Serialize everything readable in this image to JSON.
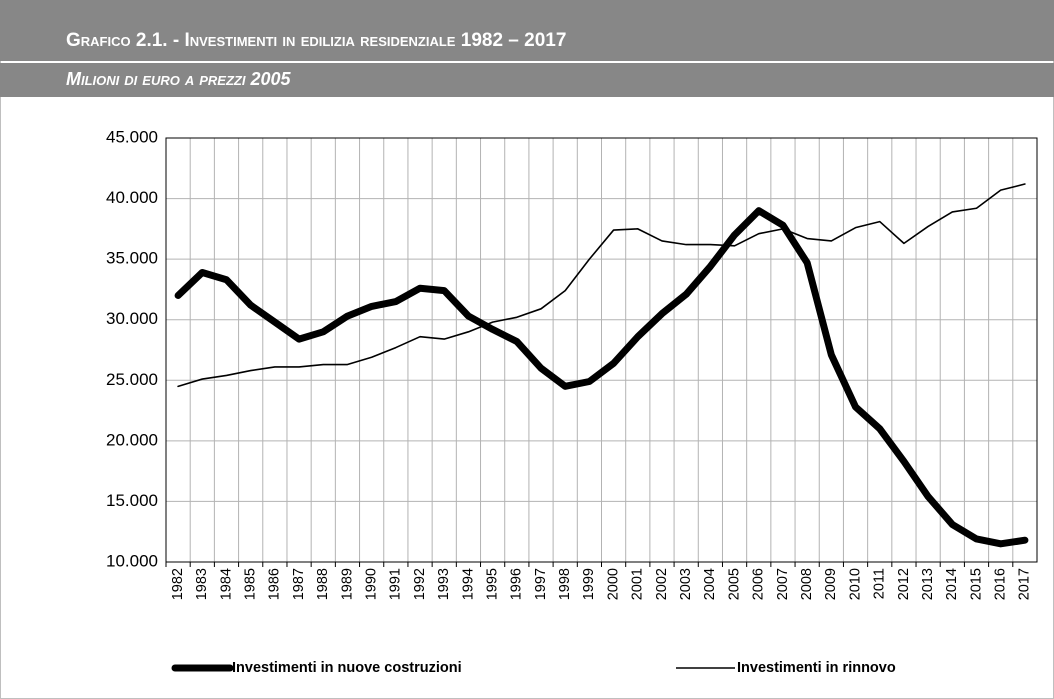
{
  "chart_data": {
    "type": "line",
    "title": "Grafico 2.1. - Investimenti in edilizia residenziale 1982 – 2017",
    "subtitle": "Milioni di euro a prezzi 2005",
    "categories": [
      "1982",
      "1983",
      "1984",
      "1985",
      "1986",
      "1987",
      "1988",
      "1989",
      "1990",
      "1991",
      "1992",
      "1993",
      "1994",
      "1995",
      "1996",
      "1997",
      "1998",
      "1999",
      "2000",
      "2001",
      "2002",
      "2003",
      "2004",
      "2005",
      "2006",
      "2007",
      "2008",
      "2009",
      "2010",
      "2011",
      "2012",
      "2013",
      "2014",
      "2015",
      "2016",
      "2017"
    ],
    "series": [
      {
        "name": "Investimenti in nuove costruzioni",
        "color": "#000000",
        "values": [
          32000,
          33900,
          33300,
          31200,
          29800,
          28400,
          29000,
          30300,
          31100,
          31500,
          32600,
          32400,
          30300,
          29200,
          28200,
          26000,
          24500,
          24900,
          26400,
          28600,
          30500,
          32100,
          34400,
          37000,
          39000,
          37800,
          34700,
          27100,
          22800,
          21000,
          18300,
          15400,
          13100,
          11900,
          11500,
          11800
        ]
      },
      {
        "name": "Investimenti in rinnovo",
        "color": "#000000",
        "values": [
          24500,
          25100,
          25400,
          25800,
          26100,
          26100,
          26300,
          26300,
          26900,
          27700,
          28600,
          28400,
          29000,
          29800,
          30200,
          30900,
          32400,
          35000,
          37400,
          37500,
          36500,
          36200,
          36200,
          36100,
          37100,
          37500,
          36700,
          36500,
          37600,
          38100,
          36300,
          37700,
          38900,
          39200,
          40700,
          41200
        ]
      }
    ],
    "ylim": [
      10000,
      45000
    ],
    "yticks": [
      {
        "value": 10000,
        "label": "10.000"
      },
      {
        "value": 15000,
        "label": "15.000"
      },
      {
        "value": 20000,
        "label": "20.000"
      },
      {
        "value": 25000,
        "label": "25.000"
      },
      {
        "value": 30000,
        "label": "30.000"
      },
      {
        "value": 35000,
        "label": "35.000"
      },
      {
        "value": 40000,
        "label": "40.000"
      },
      {
        "value": 45000,
        "label": "45.000"
      }
    ],
    "grid": true,
    "legend": "bottom"
  }
}
